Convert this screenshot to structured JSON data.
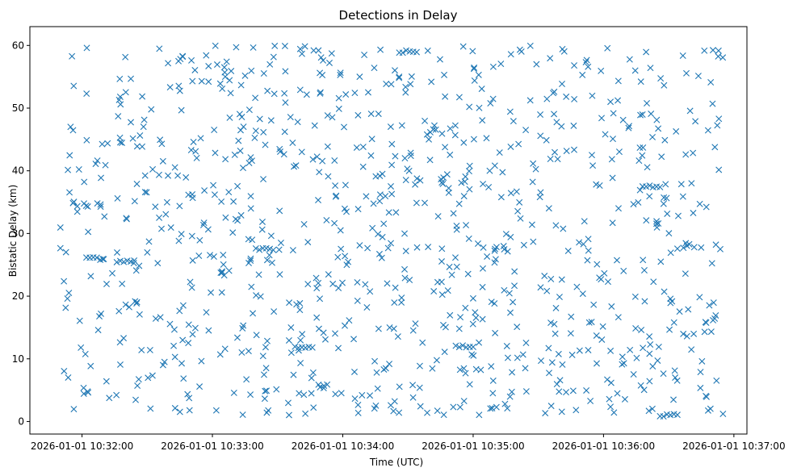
{
  "chart_data": {
    "type": "scatter",
    "title": "Detections in Delay",
    "xlabel": "Time (UTC)",
    "ylabel": "Bistatic Delay (km)",
    "marker": "x",
    "color": "#1f77b4",
    "grid": false,
    "xlim": [
      "2026-01-01 10:31:36",
      "2026-01-01 10:37:06"
    ],
    "ylim": [
      -2,
      63
    ],
    "x_ticks": [
      "2026-01-01 10:32:00",
      "2026-01-01 10:33:00",
      "2026-01-01 10:34:00",
      "2026-01-01 10:35:00",
      "2026-01-01 10:36:00",
      "2026-01-01 10:37:00"
    ],
    "y_ticks": [
      0,
      10,
      20,
      30,
      40,
      50,
      60
    ],
    "point_count": 1000,
    "x_range": [
      "2026-01-01 10:31:50",
      "2026-01-01 10:36:55"
    ],
    "y_range": [
      1,
      60
    ],
    "clusters": [
      {
        "center_time": "2026-01-01 10:32:06",
        "delay": 26
      },
      {
        "center_time": "2026-01-01 10:32:20",
        "delay": 25.5
      },
      {
        "center_time": "2026-01-01 10:33:24",
        "delay": 27.5
      },
      {
        "center_time": "2026-01-01 10:33:42",
        "delay": 11.8
      },
      {
        "center_time": "2026-01-01 10:34:30",
        "delay": 59
      },
      {
        "center_time": "2026-01-01 10:34:56",
        "delay": 12
      },
      {
        "center_time": "2026-01-01 10:36:22",
        "delay": 37.5
      },
      {
        "center_time": "2026-01-01 10:36:30",
        "delay": 1
      }
    ]
  }
}
